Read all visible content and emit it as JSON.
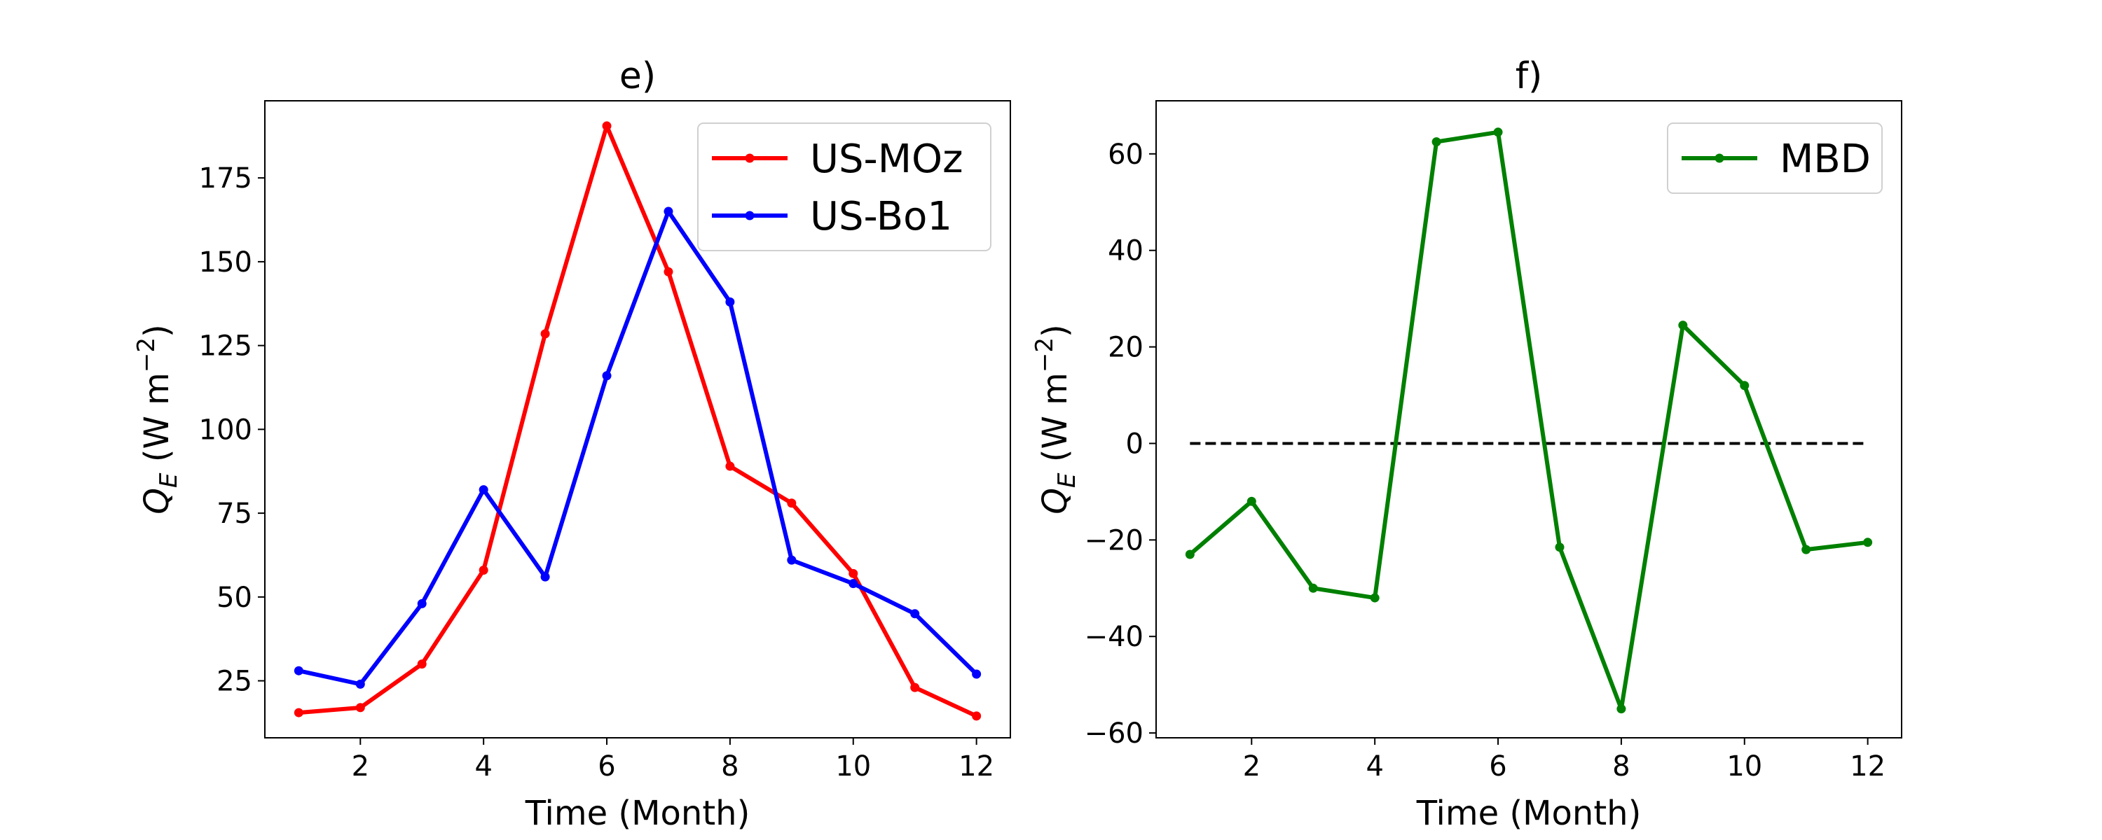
{
  "chart_data": [
    {
      "type": "line",
      "title": "e)",
      "xlabel": "Time (Month)",
      "ylabel": {
        "symbol": "Q",
        "sub": "E",
        "unit_open": " (W m",
        "unit_sup": "−2",
        "unit_close": ")"
      },
      "x": [
        1,
        2,
        3,
        4,
        5,
        6,
        7,
        8,
        9,
        10,
        11,
        12
      ],
      "xlim": [
        0.45,
        12.55
      ],
      "ylim": [
        8,
        198
      ],
      "xticks": [
        2,
        4,
        6,
        8,
        10,
        12
      ],
      "yticks": [
        25,
        50,
        75,
        100,
        125,
        150,
        175
      ],
      "grid": false,
      "legend_position": "top-right",
      "series": [
        {
          "name": "US-MOz",
          "color": "#ff0000",
          "values": [
            15.5,
            17.0,
            30.0,
            58.0,
            128.5,
            190.5,
            147.0,
            89.0,
            78.0,
            57.0,
            23.0,
            14.5
          ]
        },
        {
          "name": "US-Bo1",
          "color": "#0000ff",
          "values": [
            28.0,
            24.0,
            48.0,
            82.0,
            56.0,
            116.0,
            165.0,
            138.0,
            61.0,
            54.0,
            45.0,
            27.0
          ]
        }
      ]
    },
    {
      "type": "line",
      "title": "f)",
      "xlabel": "Time (Month)",
      "ylabel": {
        "symbol": "Q",
        "sub": "E",
        "unit_open": " (W m",
        "unit_sup": "−2",
        "unit_close": ")"
      },
      "x": [
        1,
        2,
        3,
        4,
        5,
        6,
        7,
        8,
        9,
        10,
        11,
        12
      ],
      "xlim": [
        0.45,
        12.55
      ],
      "ylim": [
        -61,
        71
      ],
      "xticks": [
        2,
        4,
        6,
        8,
        10,
        12
      ],
      "yticks": [
        -60,
        -40,
        -20,
        0,
        20,
        40,
        60
      ],
      "grid": false,
      "legend_position": "top-right",
      "reference_line": {
        "y": 0,
        "style": "dashed",
        "color": "#000000"
      },
      "series": [
        {
          "name": "MBD",
          "color": "#008000",
          "values": [
            -23.0,
            -12.0,
            -30.0,
            -32.0,
            62.5,
            64.5,
            -21.5,
            -55.0,
            24.5,
            12.0,
            -22.0,
            -20.5
          ]
        }
      ]
    }
  ]
}
